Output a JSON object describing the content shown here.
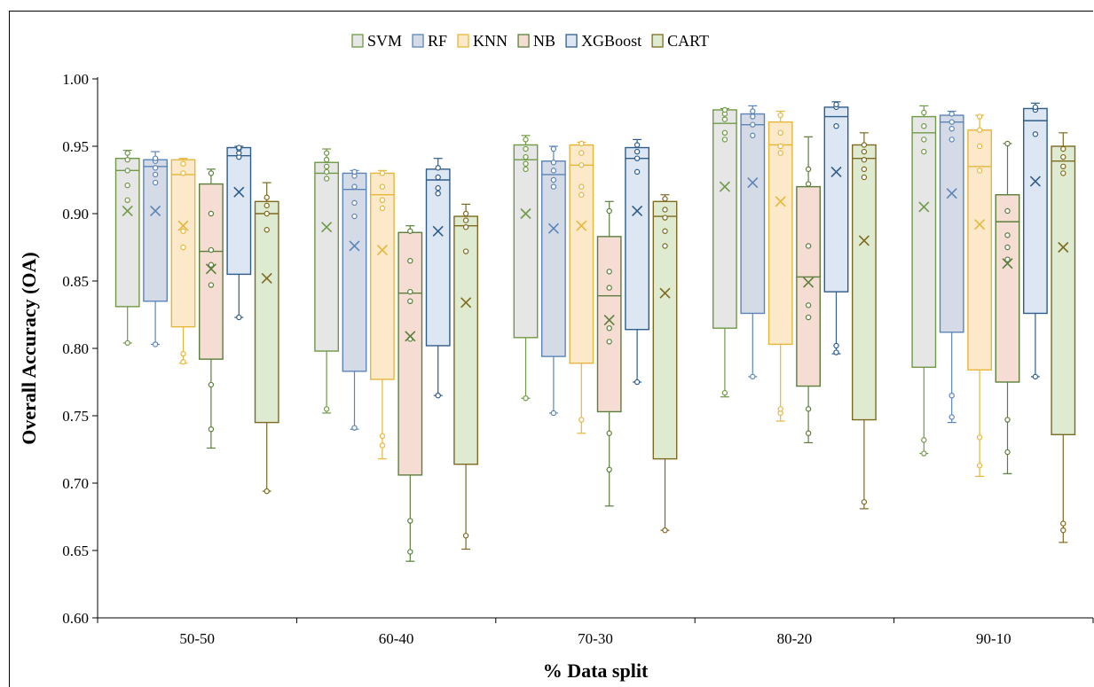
{
  "chart_data": {
    "type": "box",
    "xlabel": "% Data split",
    "ylabel": "Overall Accuracy (OA)",
    "ylim": [
      0.6,
      1.0
    ],
    "yticks": [
      0.6,
      0.65,
      0.7,
      0.75,
      0.8,
      0.85,
      0.9,
      0.95,
      1.0
    ],
    "categories": [
      "50-50",
      "60-40",
      "70-30",
      "80-20",
      "90-10"
    ],
    "grid": false,
    "legend_position": "top-center",
    "series": [
      {
        "name": "SVM",
        "fill": "#e6e6e6",
        "stroke": "#6f9a45",
        "boxes": [
          {
            "min": 0.804,
            "q1": 0.831,
            "median": 0.932,
            "q3": 0.941,
            "max": 0.947,
            "mean": 0.902,
            "points": [
              0.804,
              0.91,
              0.921,
              0.932,
              0.94,
              0.945
            ]
          },
          {
            "min": 0.752,
            "q1": 0.798,
            "median": 0.93,
            "q3": 0.938,
            "max": 0.948,
            "mean": 0.89,
            "points": [
              0.755,
              0.926,
              0.931,
              0.935,
              0.94,
              0.945
            ]
          },
          {
            "min": 0.763,
            "q1": 0.808,
            "median": 0.94,
            "q3": 0.951,
            "max": 0.958,
            "mean": 0.9,
            "points": [
              0.763,
              0.933,
              0.937,
              0.942,
              0.948,
              0.955
            ]
          },
          {
            "min": 0.764,
            "q1": 0.815,
            "median": 0.967,
            "q3": 0.977,
            "max": 0.978,
            "mean": 0.92,
            "points": [
              0.767,
              0.955,
              0.96,
              0.97,
              0.974,
              0.977
            ]
          },
          {
            "min": 0.722,
            "q1": 0.786,
            "median": 0.96,
            "q3": 0.972,
            "max": 0.98,
            "mean": 0.905,
            "points": [
              0.722,
              0.732,
              0.946,
              0.955,
              0.965,
              0.975
            ]
          }
        ]
      },
      {
        "name": "RF",
        "fill": "#d5dbe6",
        "stroke": "#5b85b8",
        "boxes": [
          {
            "min": 0.803,
            "q1": 0.835,
            "median": 0.935,
            "q3": 0.94,
            "max": 0.946,
            "mean": 0.902,
            "points": [
              0.803,
              0.923,
              0.929,
              0.934,
              0.939,
              0.941
            ]
          },
          {
            "min": 0.74,
            "q1": 0.783,
            "median": 0.918,
            "q3": 0.93,
            "max": 0.932,
            "mean": 0.876,
            "points": [
              0.741,
              0.898,
              0.908,
              0.92,
              0.928,
              0.931
            ]
          },
          {
            "min": 0.752,
            "q1": 0.794,
            "median": 0.929,
            "q3": 0.939,
            "max": 0.95,
            "mean": 0.889,
            "points": [
              0.752,
              0.92,
              0.925,
              0.932,
              0.938,
              0.948
            ]
          },
          {
            "min": 0.779,
            "q1": 0.826,
            "median": 0.966,
            "q3": 0.974,
            "max": 0.98,
            "mean": 0.923,
            "points": [
              0.779,
              0.958,
              0.966,
              0.972,
              0.976
            ]
          },
          {
            "min": 0.745,
            "q1": 0.812,
            "median": 0.968,
            "q3": 0.973,
            "max": 0.976,
            "mean": 0.915,
            "points": [
              0.749,
              0.765,
              0.955,
              0.963,
              0.968,
              0.974
            ]
          }
        ]
      },
      {
        "name": "KNN",
        "fill": "#fbe9c9",
        "stroke": "#e7b73a",
        "boxes": [
          {
            "min": 0.789,
            "q1": 0.816,
            "median": 0.929,
            "q3": 0.94,
            "max": 0.941,
            "mean": 0.891,
            "points": [
              0.79,
              0.796,
              0.875,
              0.887,
              0.93,
              0.937
            ]
          },
          {
            "min": 0.718,
            "q1": 0.777,
            "median": 0.914,
            "q3": 0.93,
            "max": 0.932,
            "mean": 0.873,
            "points": [
              0.728,
              0.735,
              0.904,
              0.91,
              0.92,
              0.93
            ]
          },
          {
            "min": 0.737,
            "q1": 0.789,
            "median": 0.936,
            "q3": 0.951,
            "max": 0.953,
            "mean": 0.891,
            "points": [
              0.747,
              0.914,
              0.92,
              0.936,
              0.945,
              0.952
            ]
          },
          {
            "min": 0.746,
            "q1": 0.803,
            "median": 0.951,
            "q3": 0.968,
            "max": 0.976,
            "mean": 0.909,
            "points": [
              0.752,
              0.755,
              0.945,
              0.95,
              0.96,
              0.973
            ]
          },
          {
            "min": 0.705,
            "q1": 0.784,
            "median": 0.935,
            "q3": 0.962,
            "max": 0.973,
            "mean": 0.892,
            "points": [
              0.713,
              0.734,
              0.932,
              0.95,
              0.962,
              0.972
            ]
          }
        ]
      },
      {
        "name": "NB",
        "fill": "#f5ddd3",
        "stroke": "#5b7f3a",
        "boxes": [
          {
            "min": 0.726,
            "q1": 0.792,
            "median": 0.872,
            "q3": 0.922,
            "max": 0.933,
            "mean": 0.859,
            "points": [
              0.74,
              0.773,
              0.847,
              0.862,
              0.873,
              0.9,
              0.93
            ]
          },
          {
            "min": 0.642,
            "q1": 0.706,
            "median": 0.841,
            "q3": 0.886,
            "max": 0.891,
            "mean": 0.809,
            "points": [
              0.649,
              0.672,
              0.807,
              0.835,
              0.842,
              0.865,
              0.887
            ]
          },
          {
            "min": 0.683,
            "q1": 0.753,
            "median": 0.839,
            "q3": 0.883,
            "max": 0.909,
            "mean": 0.821,
            "points": [
              0.71,
              0.737,
              0.805,
              0.815,
              0.845,
              0.857,
              0.902
            ]
          },
          {
            "min": 0.73,
            "q1": 0.772,
            "median": 0.853,
            "q3": 0.92,
            "max": 0.957,
            "mean": 0.849,
            "points": [
              0.737,
              0.755,
              0.823,
              0.832,
              0.876,
              0.922,
              0.933
            ]
          },
          {
            "min": 0.707,
            "q1": 0.775,
            "median": 0.894,
            "q3": 0.914,
            "max": 0.952,
            "mean": 0.863,
            "points": [
              0.723,
              0.747,
              0.866,
              0.875,
              0.884,
              0.902,
              0.952
            ]
          }
        ]
      },
      {
        "name": "XGBoost",
        "fill": "#dde7f3",
        "stroke": "#2f5d8a",
        "boxes": [
          {
            "min": 0.823,
            "q1": 0.855,
            "median": 0.943,
            "q3": 0.949,
            "max": 0.95,
            "mean": 0.916,
            "points": [
              0.823,
              0.942,
              0.945,
              0.948,
              0.949
            ]
          },
          {
            "min": 0.765,
            "q1": 0.802,
            "median": 0.925,
            "q3": 0.933,
            "max": 0.941,
            "mean": 0.887,
            "points": [
              0.765,
              0.915,
              0.919,
              0.927,
              0.934
            ]
          },
          {
            "min": 0.775,
            "q1": 0.814,
            "median": 0.941,
            "q3": 0.949,
            "max": 0.955,
            "mean": 0.902,
            "points": [
              0.775,
              0.931,
              0.941,
              0.946,
              0.951
            ]
          },
          {
            "min": 0.796,
            "q1": 0.842,
            "median": 0.972,
            "q3": 0.979,
            "max": 0.983,
            "mean": 0.931,
            "points": [
              0.797,
              0.802,
              0.965,
              0.979,
              0.981
            ]
          },
          {
            "min": 0.779,
            "q1": 0.826,
            "median": 0.969,
            "q3": 0.978,
            "max": 0.982,
            "mean": 0.924,
            "points": [
              0.779,
              0.959,
              0.977,
              0.979
            ]
          }
        ]
      },
      {
        "name": "CART",
        "fill": "#dfebd1",
        "stroke": "#7d6a1e",
        "boxes": [
          {
            "min": 0.694,
            "q1": 0.745,
            "median": 0.9,
            "q3": 0.909,
            "max": 0.923,
            "mean": 0.852,
            "points": [
              0.694,
              0.888,
              0.9,
              0.906,
              0.912
            ]
          },
          {
            "min": 0.651,
            "q1": 0.714,
            "median": 0.891,
            "q3": 0.898,
            "max": 0.907,
            "mean": 0.834,
            "points": [
              0.661,
              0.872,
              0.89,
              0.895,
              0.9
            ]
          },
          {
            "min": 0.665,
            "q1": 0.718,
            "median": 0.898,
            "q3": 0.909,
            "max": 0.914,
            "mean": 0.841,
            "points": [
              0.665,
              0.876,
              0.887,
              0.897,
              0.903,
              0.911
            ]
          },
          {
            "min": 0.681,
            "q1": 0.747,
            "median": 0.941,
            "q3": 0.951,
            "max": 0.96,
            "mean": 0.88,
            "points": [
              0.686,
              0.927,
              0.933,
              0.94,
              0.946,
              0.951
            ]
          },
          {
            "min": 0.656,
            "q1": 0.736,
            "median": 0.939,
            "q3": 0.95,
            "max": 0.96,
            "mean": 0.875,
            "points": [
              0.665,
              0.67,
              0.93,
              0.935,
              0.942,
              0.948
            ]
          }
        ]
      }
    ]
  }
}
